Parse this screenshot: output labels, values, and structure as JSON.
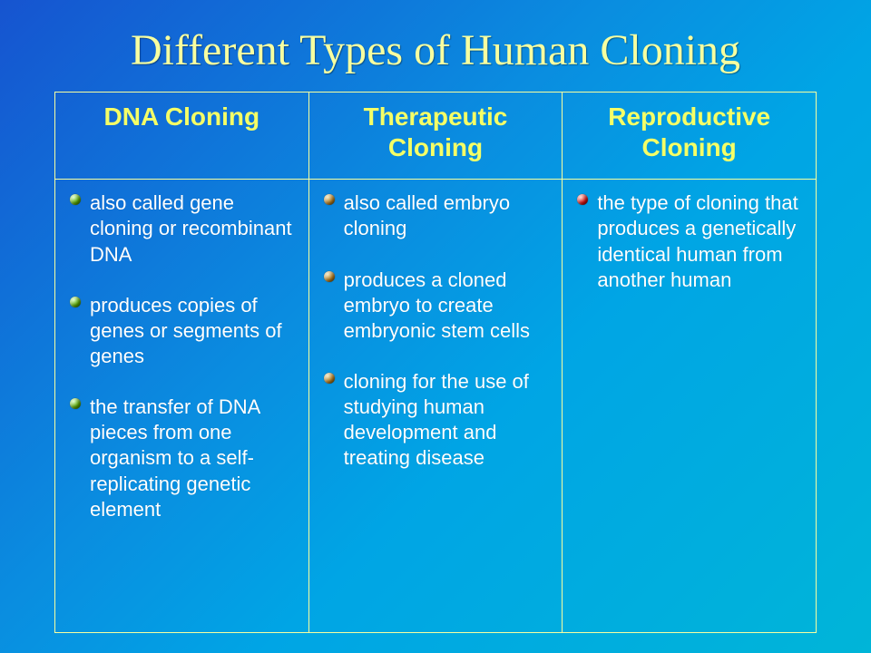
{
  "title": "Different Types of Human Cloning",
  "title_color": "#f7ffa0",
  "title_fontfamily": "Comic Sans MS",
  "title_fontsize_pt": 36,
  "background_gradient": [
    "#1654d0",
    "#0a8de0",
    "#00a5e5",
    "#00b5d8"
  ],
  "table": {
    "border_color": "#f7ffa0",
    "header_text_color": "#f5ff66",
    "header_fontsize_pt": 21,
    "header_fontweight": "bold",
    "body_text_color": "#ffffff",
    "body_fontsize_pt": 17,
    "columns": [
      {
        "header": "DNA Cloning",
        "bullet_color": "#57a300",
        "bullet_class": "green"
      },
      {
        "header": "Therapeutic Cloning",
        "bullet_color": "#b07a20",
        "bullet_class": "brown"
      },
      {
        "header": "Reproductive Cloning",
        "bullet_color": "#d01010",
        "bullet_class": "red"
      }
    ],
    "cells": [
      [
        "also called gene cloning or recombinant DNA",
        "produces copies of genes or segments of genes",
        "the transfer of DNA pieces from one organism to a self-replicating genetic element"
      ],
      [
        "also called embryo cloning",
        "produces a cloned embryo to create embryonic stem cells",
        "cloning for the use of studying human development and treating disease"
      ],
      [
        "the type of cloning that produces a genetically identical human from another human"
      ]
    ]
  }
}
